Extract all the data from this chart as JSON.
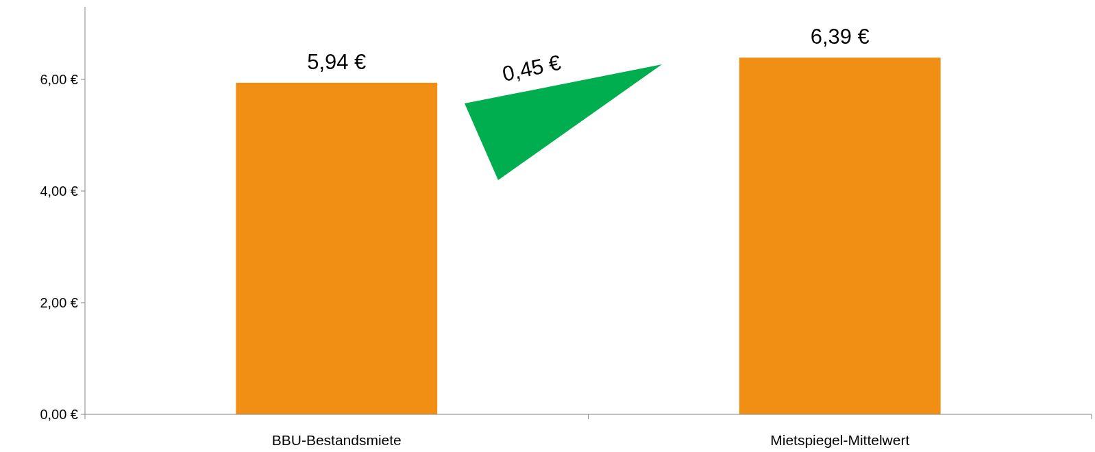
{
  "chart_data": {
    "type": "bar",
    "categories": [
      "BBU-Bestandsmiete",
      "Mietspiegel-Mittelwert"
    ],
    "values": [
      5.94,
      6.39
    ],
    "color": "#f08f13",
    "value_labels": [
      "5,94 €",
      "6,39 €"
    ],
    "ylim": [
      0,
      7.3
    ],
    "yticks": [
      {
        "value": 0,
        "label": "0,00 €"
      },
      {
        "value": 2,
        "label": "2,00 €"
      },
      {
        "value": 4,
        "label": "4,00 €"
      },
      {
        "value": 6,
        "label": "6,00 €"
      }
    ],
    "annotations": [
      "0,45 €"
    ],
    "grid": false
  }
}
